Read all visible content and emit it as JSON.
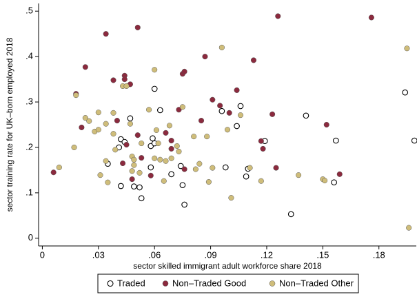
{
  "chart_data": {
    "type": "scatter",
    "x_label": "sector skilled immigrant adult workforce share 2018",
    "y_label": "sector training rate for UK–born employed 2018",
    "xlim": [
      -0.002,
      0.2
    ],
    "ylim": [
      -0.017,
      0.517
    ],
    "xticks": [
      0,
      {
        "value": 0.03,
        "label": ".03"
      },
      {
        "value": 0.06,
        "label": ".06"
      },
      {
        "value": 0.09,
        "label": ".09"
      },
      {
        "value": 0.12,
        "label": ".12"
      },
      {
        "value": 0.15,
        "label": ".15"
      },
      {
        "value": 0.18,
        "label": ".18"
      }
    ],
    "yticks": [
      0,
      {
        "value": 0.1,
        "label": ".1"
      },
      {
        "value": 0.2,
        "label": ".2"
      },
      {
        "value": 0.3,
        "label": ".3"
      },
      {
        "value": 0.4,
        "label": ".4"
      },
      {
        "value": 0.5,
        "label": ".5"
      }
    ],
    "grid": false,
    "legend": "bottom",
    "series": [
      {
        "name": "Traded",
        "color": "#000000",
        "filled": false,
        "x": [
          0.035,
          0.042,
          0.041,
          0.044,
          0.047,
          0.042,
          0.049,
          0.052,
          0.053,
          0.06,
          0.063,
          0.059,
          0.058,
          0.06,
          0.058,
          0.069,
          0.075,
          0.074,
          0.076,
          0.096,
          0.098,
          0.104,
          0.106,
          0.109,
          0.11,
          0.119,
          0.141,
          0.133,
          0.156,
          0.157,
          0.194,
          0.199
        ],
        "y": [
          0.164,
          0.218,
          0.2,
          0.212,
          0.264,
          0.115,
          0.114,
          0.112,
          0.088,
          0.329,
          0.282,
          0.22,
          0.203,
          0.209,
          0.156,
          0.141,
          0.117,
          0.159,
          0.074,
          0.28,
          0.156,
          0.247,
          0.291,
          0.136,
          0.153,
          0.214,
          0.27,
          0.053,
          0.123,
          0.215,
          0.321,
          0.215
        ]
      },
      {
        "name": "Non–Traded Good",
        "color": "#8b2a3e",
        "filled": true,
        "x": [
          0.006,
          0.018,
          0.023,
          0.021,
          0.034,
          0.038,
          0.04,
          0.044,
          0.044,
          0.047,
          0.045,
          0.051,
          0.051,
          0.043,
          0.048,
          0.053,
          0.058,
          0.066,
          0.069,
          0.069,
          0.075,
          0.076,
          0.076,
          0.073,
          0.085,
          0.087,
          0.091,
          0.095,
          0.1,
          0.104,
          0.113,
          0.117,
          0.118,
          0.123,
          0.125,
          0.126,
          0.152,
          0.159,
          0.176
        ],
        "y": [
          0.145,
          0.318,
          0.377,
          0.244,
          0.45,
          0.348,
          0.259,
          0.358,
          0.35,
          0.339,
          0.206,
          0.227,
          0.464,
          0.165,
          0.13,
          0.177,
          0.138,
          0.232,
          0.215,
          0.197,
          0.362,
          0.367,
          0.152,
          0.283,
          0.259,
          0.4,
          0.305,
          0.292,
          0.276,
          0.326,
          0.392,
          0.214,
          0.197,
          0.273,
          0.155,
          0.489,
          0.25,
          0.141,
          0.486
        ]
      },
      {
        "name": "Non–Traded Other",
        "color": "#cfbd7a",
        "filled": true,
        "x": [
          0.009,
          0.017,
          0.018,
          0.023,
          0.025,
          0.028,
          0.03,
          0.03,
          0.031,
          0.034,
          0.035,
          0.034,
          0.038,
          0.038,
          0.039,
          0.043,
          0.045,
          0.047,
          0.048,
          0.049,
          0.049,
          0.048,
          0.052,
          0.053,
          0.057,
          0.06,
          0.061,
          0.06,
          0.063,
          0.062,
          0.065,
          0.066,
          0.068,
          0.069,
          0.072,
          0.073,
          0.075,
          0.081,
          0.084,
          0.082,
          0.088,
          0.089,
          0.091,
          0.096,
          0.099,
          0.101,
          0.106,
          0.111,
          0.117,
          0.137,
          0.15,
          0.151,
          0.195,
          0.196
        ],
        "y": [
          0.156,
          0.2,
          0.315,
          0.265,
          0.258,
          0.235,
          0.277,
          0.239,
          0.139,
          0.17,
          0.123,
          0.252,
          0.276,
          0.23,
          0.195,
          0.335,
          0.335,
          0.252,
          0.18,
          0.173,
          0.161,
          0.148,
          0.144,
          0.209,
          0.283,
          0.371,
          0.238,
          0.176,
          0.173,
          0.209,
          0.126,
          0.17,
          0.248,
          0.176,
          0.203,
          0.191,
          0.289,
          0.224,
          0.164,
          0.152,
          0.224,
          0.124,
          0.155,
          0.42,
          0.239,
          0.089,
          0.271,
          0.155,
          0.126,
          0.139,
          0.13,
          0.127,
          0.418,
          0.023
        ]
      }
    ]
  }
}
